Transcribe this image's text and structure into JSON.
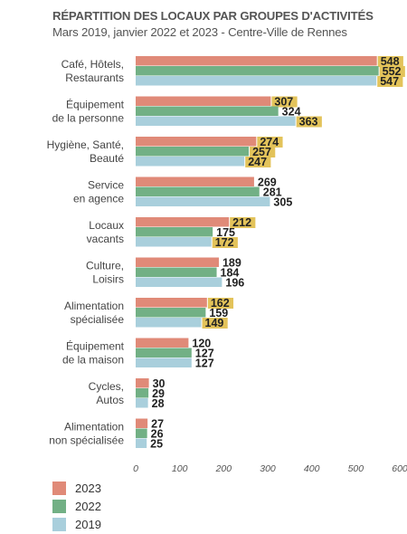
{
  "chart_data": {
    "type": "bar",
    "orientation": "horizontal",
    "title": "RÉPARTITION DES LOCAUX PAR GROUPES D'ACTIVITÉS",
    "subtitle": "Mars 2019, janvier 2022 et 2023 - Centre-Ville de Rennes",
    "categories": [
      [
        "Café, Hôtels,",
        "Restaurants"
      ],
      [
        "Équipement",
        "de la personne"
      ],
      [
        "Hygiène, Santé,",
        "Beauté"
      ],
      [
        "Service",
        "en agence"
      ],
      [
        "Locaux",
        "vacants"
      ],
      [
        "Culture,",
        "Loisirs"
      ],
      [
        "Alimentation",
        "spécialisée"
      ],
      [
        "Équipement",
        "de la maison"
      ],
      [
        "Cycles,",
        "Autos"
      ],
      [
        "Alimentation",
        "non spécialisée"
      ]
    ],
    "series": [
      {
        "name": "2023",
        "color": "#e08a78",
        "values": [
          548,
          307,
          274,
          269,
          212,
          189,
          162,
          120,
          30,
          27
        ]
      },
      {
        "name": "2022",
        "color": "#72b085",
        "values": [
          552,
          324,
          257,
          281,
          175,
          184,
          159,
          127,
          29,
          26
        ]
      },
      {
        "name": "2019",
        "color": "#a9cfdc",
        "values": [
          547,
          363,
          247,
          305,
          172,
          196,
          149,
          127,
          28,
          25
        ]
      }
    ],
    "highlighted_labels": [
      [
        true,
        true,
        true
      ],
      [
        true,
        false,
        true
      ],
      [
        true,
        true,
        true
      ],
      [
        false,
        false,
        false
      ],
      [
        true,
        false,
        true
      ],
      [
        false,
        false,
        false
      ],
      [
        true,
        false,
        true
      ],
      [
        false,
        false,
        false
      ],
      [
        false,
        false,
        false
      ],
      [
        false,
        false,
        false
      ]
    ],
    "highlight_color": "#e3c35a",
    "xlim": [
      0,
      600
    ],
    "xticks": [
      "0",
      "100",
      "200",
      "300",
      "400",
      "500",
      "600"
    ],
    "legend_position": "bottom-left",
    "grid": false
  }
}
